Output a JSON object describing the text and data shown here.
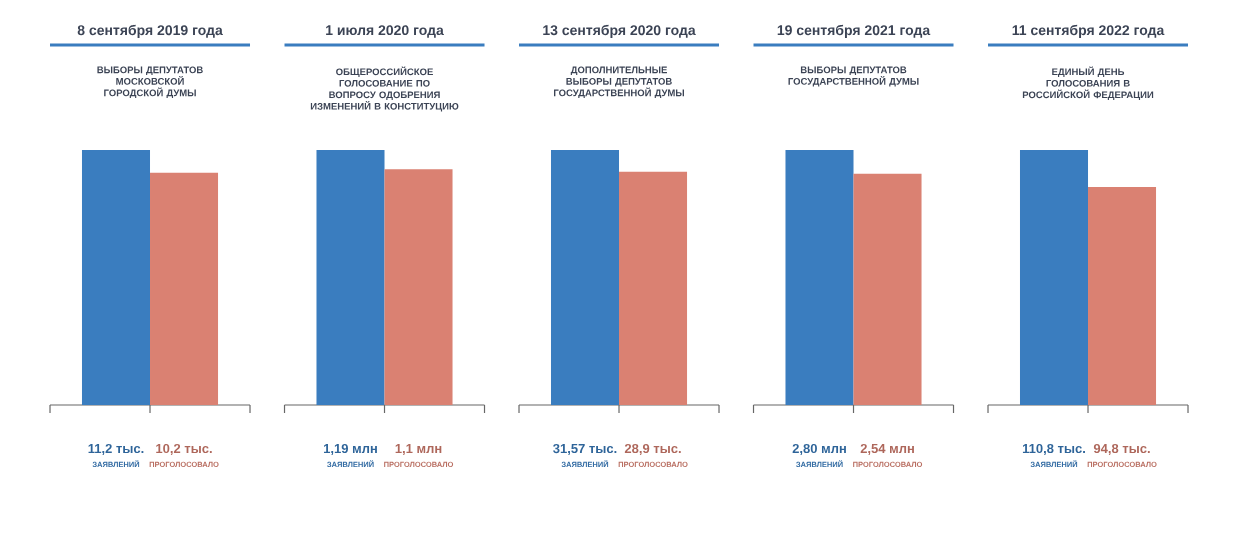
{
  "chart_data": [
    {
      "type": "bar",
      "title": "8 сентября 2019 года",
      "subtitle": "ВЫБОРЫ ДЕПУТАТОВ МОСКОВСКОЙ ГОРОДСКОЙ ДУМЫ",
      "categories": [
        "ЗАЯВЛЕНИЙ",
        "ПРОГОЛОСОВАЛО"
      ],
      "values": [
        11.2,
        10.2
      ],
      "value_labels": [
        "11,2 тыс.",
        "10,2 тыс."
      ],
      "colors": [
        "#3a7dbf",
        "#da8172"
      ]
    },
    {
      "type": "bar",
      "title": "1 июля 2020 года",
      "subtitle": "ОБЩЕРОССИЙСКОЕ ГОЛОСОВАНИЕ ПО ВОПРОСУ ОДОБРЕНИЯ ИЗМЕНЕНИЙ В КОНСТИТУЦИЮ",
      "categories": [
        "ЗАЯВЛЕНИЙ",
        "ПРОГОЛОСОВАЛО"
      ],
      "values": [
        1.19,
        1.1
      ],
      "value_labels": [
        "1,19 млн",
        "1,1 млн"
      ],
      "colors": [
        "#3a7dbf",
        "#da8172"
      ]
    },
    {
      "type": "bar",
      "title": "13 сентября 2020 года",
      "subtitle": "ДОПОЛНИТЕЛЬНЫЕ ВЫБОРЫ ДЕПУТАТОВ ГОСУДАРСТВЕННОЙ ДУМЫ",
      "categories": [
        "ЗАЯВЛЕНИЙ",
        "ПРОГОЛОСОВАЛО"
      ],
      "values": [
        31.57,
        28.9
      ],
      "value_labels": [
        "31,57 тыс.",
        "28,9 тыс."
      ],
      "colors": [
        "#3a7dbf",
        "#da8172"
      ]
    },
    {
      "type": "bar",
      "title": "19 сентября 2021 года",
      "subtitle": "ВЫБОРЫ ДЕПУТАТОВ ГОСУДАРСТВЕННОЙ ДУМЫ",
      "categories": [
        "ЗАЯВЛЕНИЙ",
        "ПРОГОЛОСОВАЛО"
      ],
      "values": [
        2.8,
        2.54
      ],
      "value_labels": [
        "2,80 млн",
        "2,54 млн"
      ],
      "colors": [
        "#3a7dbf",
        "#da8172"
      ]
    },
    {
      "type": "bar",
      "title": "11 сентября 2022 года",
      "subtitle": "ЕДИНЫЙ ДЕНЬ ГОЛОСОВАНИЯ В РОССИЙСКОЙ ФЕДЕРАЦИИ",
      "categories": [
        "ЗАЯВЛЕНИЙ",
        "ПРОГОЛОСОВАЛО"
      ],
      "values": [
        110.8,
        94.8
      ],
      "value_labels": [
        "110,8 тыс.",
        "94,8 тыс."
      ],
      "colors": [
        "#3a7dbf",
        "#da8172"
      ]
    }
  ]
}
